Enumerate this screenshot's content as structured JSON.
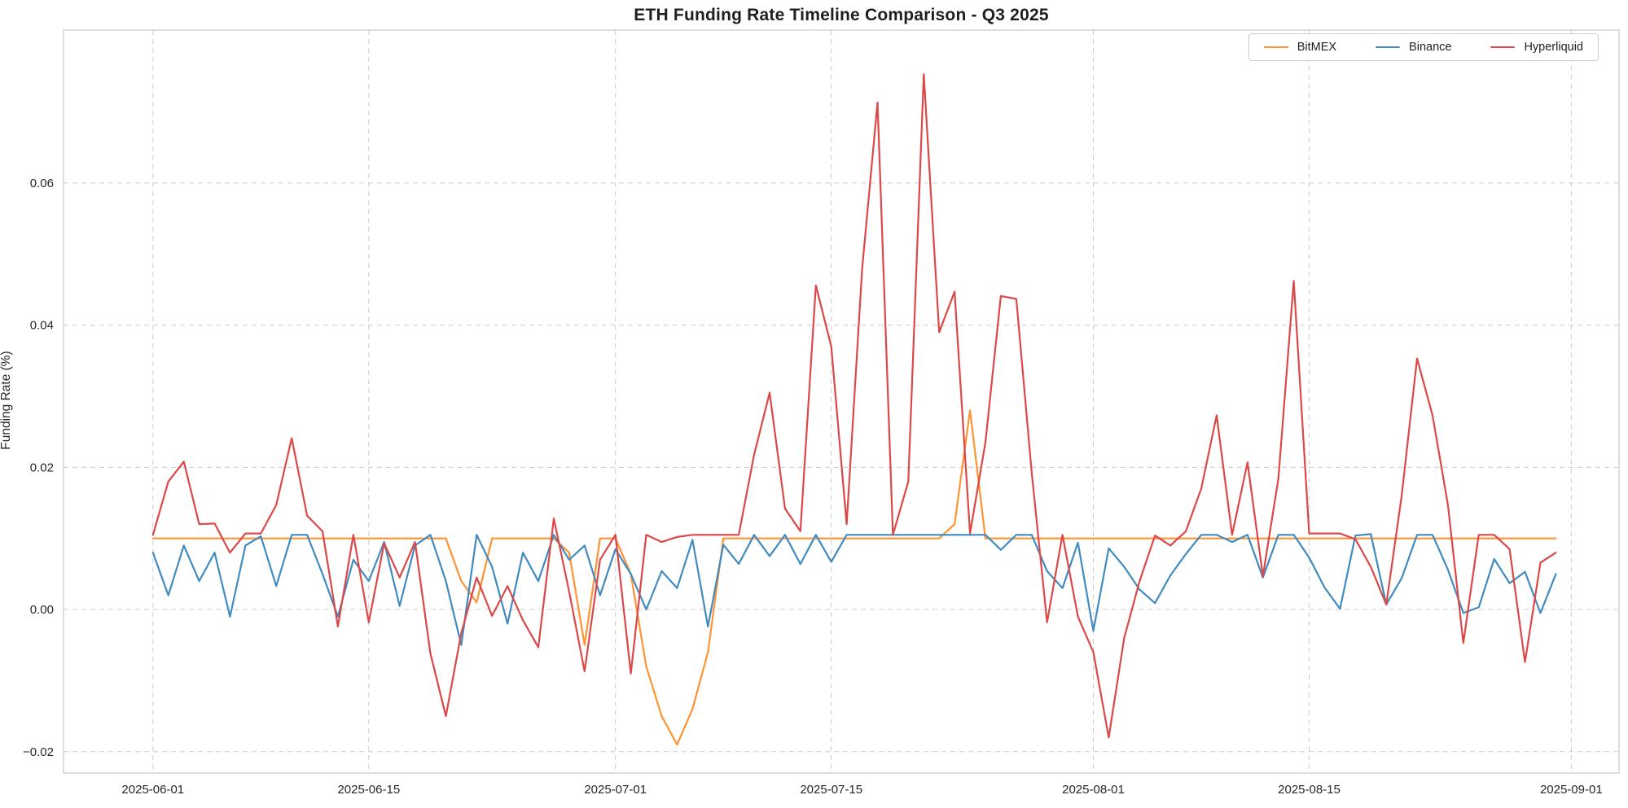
{
  "chart_data": {
    "type": "line",
    "title": "ETH Funding Rate Timeline Comparison - Q3 2025",
    "xlabel": "",
    "ylabel": "Funding Rate (%)",
    "x_start_date": "2025-06-01",
    "x_frequency": "daily",
    "xlim_days": [
      -5.8,
      95.1
    ],
    "ylim": [
      -0.023,
      0.0815
    ],
    "grid": "dashed",
    "legend_position": "upper right",
    "x_ticks": [
      {
        "label": "2025-06-01",
        "day": 0
      },
      {
        "label": "2025-06-15",
        "day": 14
      },
      {
        "label": "2025-07-01",
        "day": 30
      },
      {
        "label": "2025-07-15",
        "day": 44
      },
      {
        "label": "2025-08-01",
        "day": 61
      },
      {
        "label": "2025-08-15",
        "day": 75
      },
      {
        "label": "2025-09-01",
        "day": 92
      }
    ],
    "y_ticks": [
      {
        "label": "−0.02",
        "value": -0.02
      },
      {
        "label": "0.00",
        "value": 0.0
      },
      {
        "label": "0.02",
        "value": 0.02
      },
      {
        "label": "0.04",
        "value": 0.04
      },
      {
        "label": "0.06",
        "value": 0.06
      }
    ],
    "series": [
      {
        "name": "BitMEX",
        "color": "#ff9232",
        "values": [
          0.01,
          0.01,
          0.01,
          0.01,
          0.01,
          0.01,
          0.01,
          0.01,
          0.01,
          0.01,
          0.01,
          0.01,
          0.01,
          0.01,
          0.01,
          0.01,
          0.01,
          0.01,
          0.01,
          0.01,
          0.004,
          0.001,
          0.01,
          0.01,
          0.01,
          0.01,
          0.01,
          0.008,
          -0.005,
          0.01,
          0.01,
          0.005,
          -0.008,
          -0.015,
          -0.019,
          -0.014,
          -0.006,
          0.01,
          0.01,
          0.01,
          0.01,
          0.01,
          0.01,
          0.01,
          0.01,
          0.01,
          0.01,
          0.01,
          0.01,
          0.01,
          0.01,
          0.01,
          0.012,
          0.028,
          0.01,
          0.01,
          0.01,
          0.01,
          0.01,
          0.01,
          0.01,
          0.01,
          0.01,
          0.01,
          0.01,
          0.01,
          0.01,
          0.01,
          0.01,
          0.01,
          0.01,
          0.01,
          0.01,
          0.01,
          0.01,
          0.01,
          0.01,
          0.01,
          0.01,
          0.01,
          0.01,
          0.01,
          0.01,
          0.01,
          0.01,
          0.01,
          0.01,
          0.01,
          0.01,
          0.01,
          0.01,
          0.01
        ]
      },
      {
        "name": "Binance",
        "color": "#408bbf",
        "values": [
          0.008,
          0.002,
          0.009,
          0.004,
          0.008,
          -0.001,
          0.009,
          0.0103,
          0.0033,
          0.0105,
          0.0105,
          0.005,
          -0.001,
          0.007,
          0.004,
          0.0095,
          0.0005,
          0.009,
          0.0105,
          0.004,
          -0.005,
          0.0105,
          0.006,
          -0.002,
          0.008,
          0.004,
          0.0105,
          0.007,
          0.009,
          0.002,
          0.0085,
          0.005,
          0.0,
          0.0054,
          0.003,
          0.0098,
          -0.0024,
          0.0091,
          0.0064,
          0.0105,
          0.0075,
          0.0105,
          0.0064,
          0.0105,
          0.0067,
          0.0105,
          0.0105,
          0.0105,
          0.0105,
          0.0105,
          0.0105,
          0.0105,
          0.0105,
          0.0105,
          0.0105,
          0.0084,
          0.0105,
          0.0105,
          0.0054,
          0.003,
          0.0094,
          -0.003,
          0.0086,
          0.006,
          0.0028,
          0.0009,
          0.0048,
          0.0078,
          0.0105,
          0.0105,
          0.0095,
          0.0105,
          0.0045,
          0.0105,
          0.0105,
          0.0073,
          0.0031,
          0.0001,
          0.0104,
          0.0106,
          0.0007,
          0.0044,
          0.0105,
          0.0105,
          0.0056,
          -0.0005,
          0.0003,
          0.0071,
          0.0037,
          0.0053,
          -0.0005,
          0.005
        ]
      },
      {
        "name": "Hyperliquid",
        "color": "#dc4748",
        "values": [
          0.0105,
          0.018,
          0.0208,
          0.012,
          0.0121,
          0.008,
          0.0107,
          0.0107,
          0.0147,
          0.0241,
          0.0132,
          0.011,
          -0.0024,
          0.0105,
          -0.0018,
          0.0093,
          0.0045,
          0.0095,
          -0.0062,
          -0.015,
          -0.0033,
          0.0045,
          -0.0009,
          0.0033,
          -0.0015,
          -0.0053,
          0.0128,
          0.0025,
          -0.0087,
          0.007,
          0.0105,
          -0.009,
          0.0105,
          0.0095,
          0.0102,
          0.0105,
          0.0105,
          0.0105,
          0.0105,
          0.0218,
          0.0305,
          0.0142,
          0.011,
          0.0456,
          0.037,
          0.012,
          0.0479,
          0.0713,
          0.0105,
          0.018,
          0.0753,
          0.039,
          0.0447,
          0.0107,
          0.0235,
          0.0441,
          0.0437,
          0.0193,
          -0.0018,
          0.0105,
          -0.001,
          -0.006,
          -0.018,
          -0.004,
          0.004,
          0.0104,
          0.009,
          0.011,
          0.017,
          0.0273,
          0.0105,
          0.0207,
          0.0047,
          0.0184,
          0.0462,
          0.0107,
          0.0107,
          0.0107,
          0.0099,
          0.006,
          0.0007,
          0.016,
          0.0353,
          0.0273,
          0.0147,
          -0.0047,
          0.0105,
          0.0105,
          0.0085,
          -0.0074,
          0.0066,
          0.008
        ]
      }
    ],
    "style": {
      "background": "#ffffff",
      "grid_color": "#cccccc",
      "spine_color": "#cccccc",
      "tick_label_color": "#262626",
      "title_color": "#1f1f1f",
      "line_width": 2.2
    }
  }
}
